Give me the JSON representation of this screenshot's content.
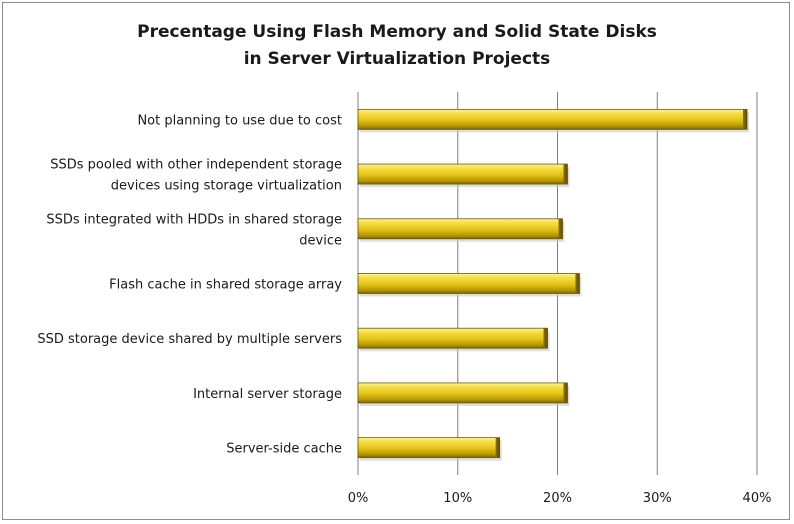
{
  "chart_data": {
    "type": "bar",
    "orientation": "horizontal",
    "title_lines": [
      "Precentage Using Flash Memory and Solid State Disks",
      "in Server Virtualization Projects"
    ],
    "categories": [
      [
        "Not planning to use due to cost"
      ],
      [
        "SSDs pooled with other independent storage",
        "devices using storage virtualization"
      ],
      [
        "SSDs integrated with HDDs in shared storage",
        "device"
      ],
      [
        "Flash cache in shared storage array"
      ],
      [
        "SSD storage device shared by multiple servers"
      ],
      [
        "Internal server storage"
      ],
      [
        "Server-side cache"
      ]
    ],
    "values": [
      39,
      21,
      20.5,
      22.2,
      19,
      21,
      14.2
    ],
    "xlim": [
      0,
      40
    ],
    "xticks": [
      0,
      10,
      20,
      30,
      40
    ],
    "xtick_labels": [
      "0%",
      "10%",
      "20%",
      "30%",
      "40%"
    ],
    "grid": "vertical",
    "bar_color": "#e6c619",
    "legend": "none"
  }
}
